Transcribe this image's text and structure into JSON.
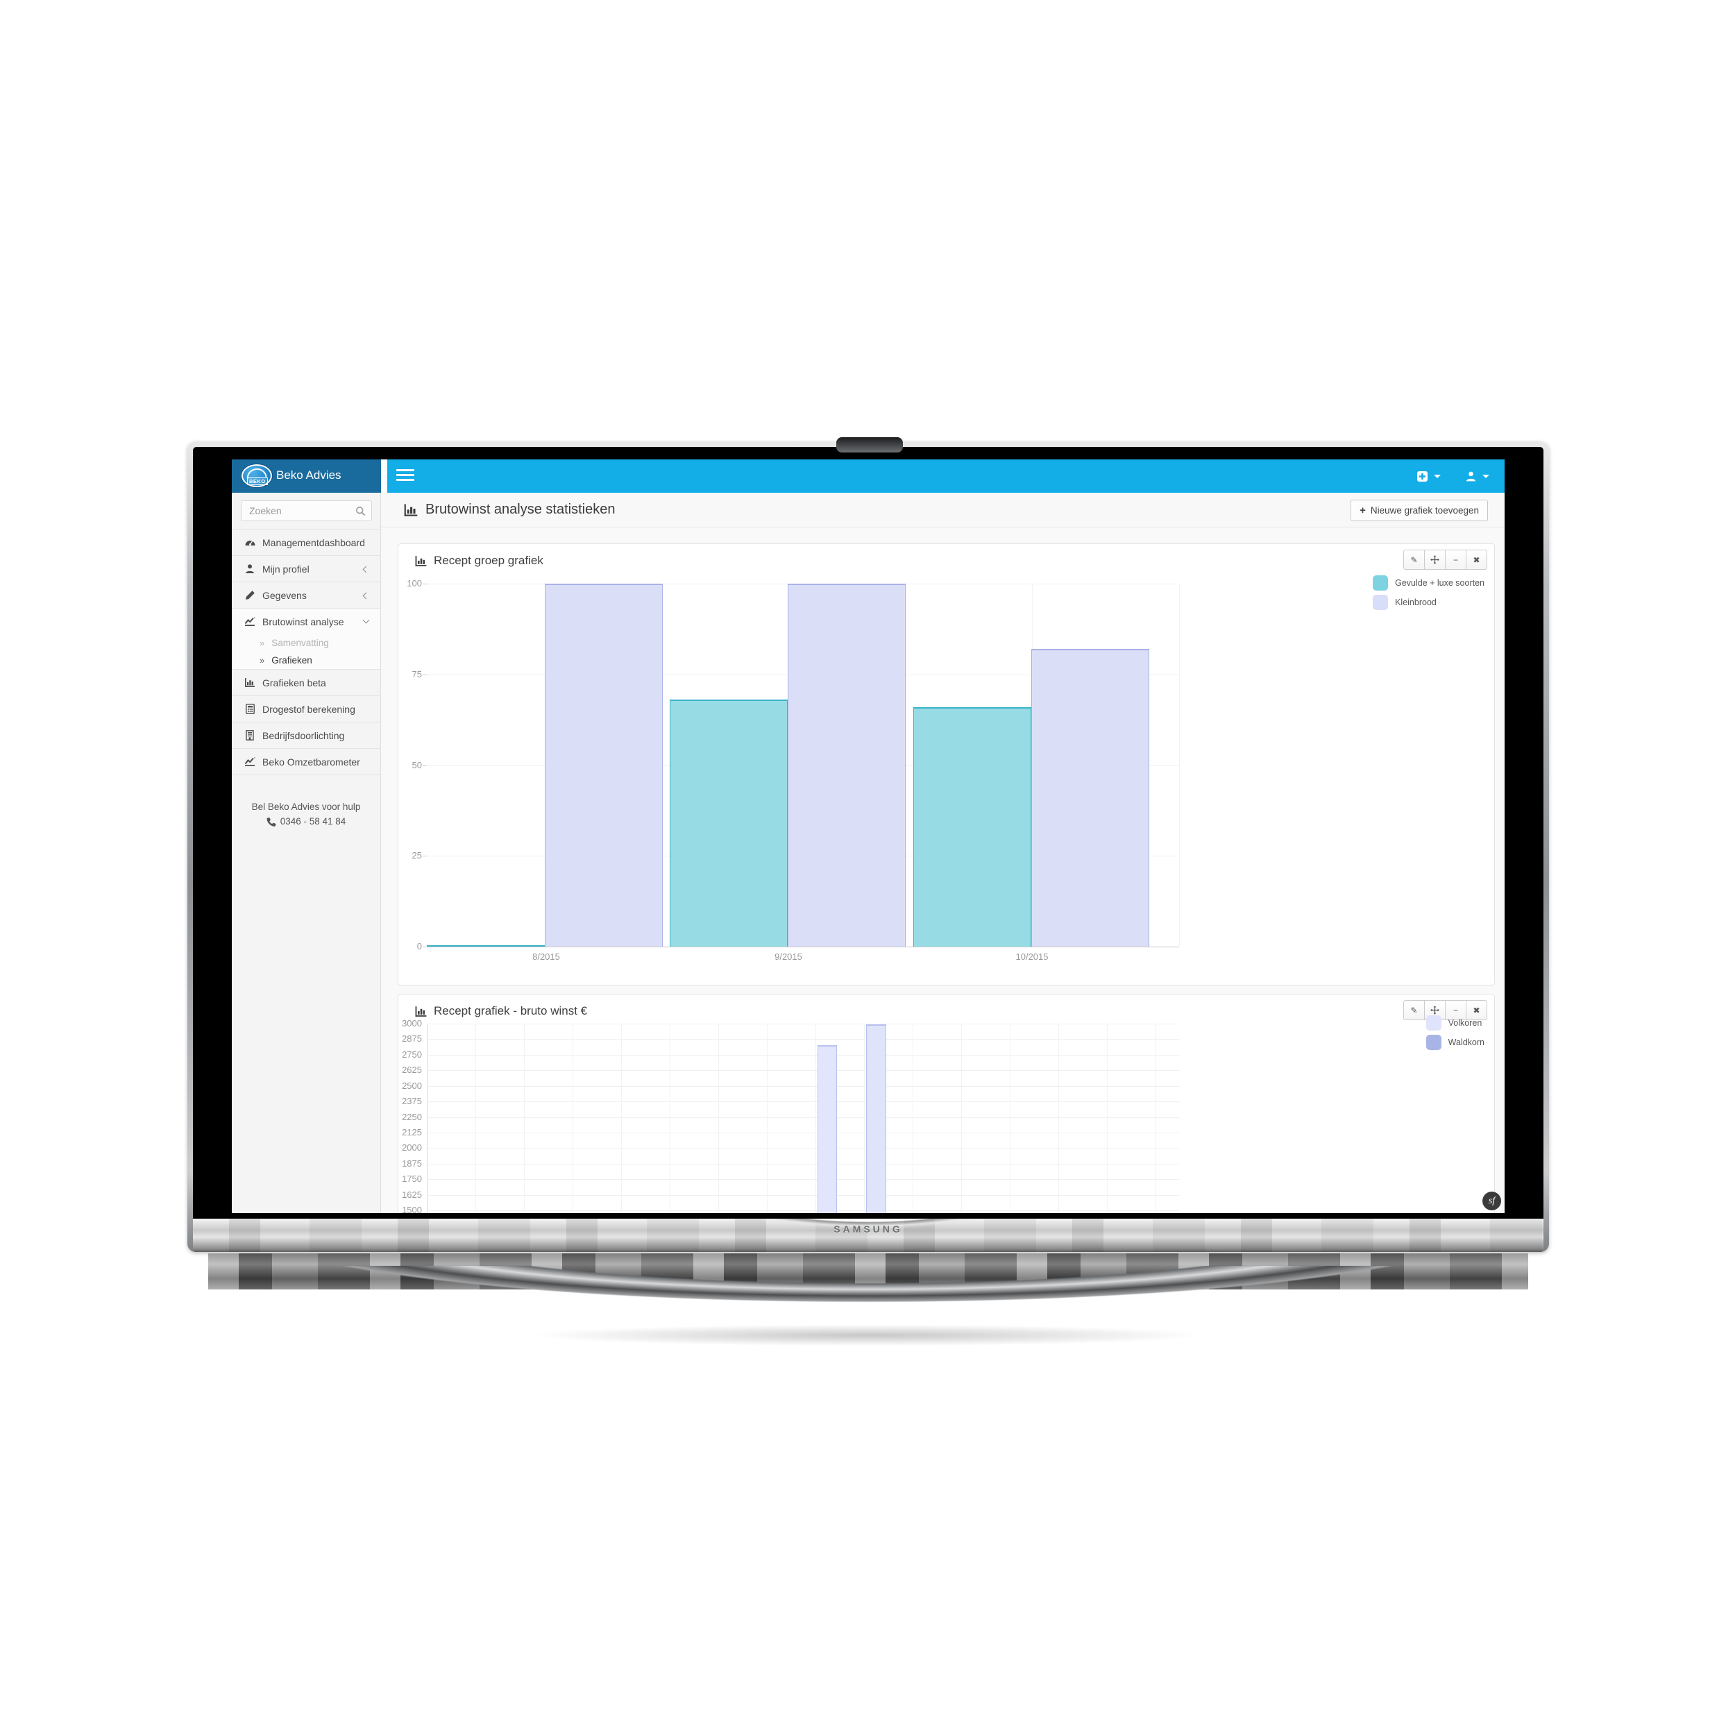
{
  "monitor": {
    "brand_label": "SAMSUNG"
  },
  "topbar": {
    "brand": "Beko Advies"
  },
  "sidebar": {
    "search_placeholder": "Zoeken",
    "items": [
      {
        "label": "Managementdashboard"
      },
      {
        "label": "Mijn profiel"
      },
      {
        "label": "Gegevens"
      },
      {
        "label": "Brutowinst analyse"
      },
      {
        "label": "Grafieken beta"
      },
      {
        "label": "Drogestof berekening"
      },
      {
        "label": "Bedrijfsdoorlichting"
      },
      {
        "label": "Beko Omzetbarometer"
      }
    ],
    "subitems": [
      {
        "label": "Samenvatting"
      },
      {
        "label": "Grafieken"
      }
    ],
    "help_text": "Bel Beko Advies voor hulp",
    "phone": "0346 - 58 41 84"
  },
  "page": {
    "title": "Brutowinst analyse statistieken",
    "add_chart_button": "Nieuwe grafiek toevoegen"
  },
  "footer_badge": "sf",
  "colors": {
    "topbar": "#13ade8",
    "brandbar": "#1a6b9d",
    "sidebar_bg": "#f4f4f4"
  },
  "chart_data": [
    {
      "type": "bar",
      "title": "Recept groep grafiek",
      "categories": [
        "8/2015",
        "9/2015",
        "10/2015"
      ],
      "series": [
        {
          "name": "Gevulde + luxe soorten",
          "values": [
            0,
            68,
            66
          ],
          "fill": "#97dbe4",
          "stroke": "#3ab4c8",
          "legend": "#7ed3e0"
        },
        {
          "name": "Kleinbrood",
          "values": [
            100,
            100,
            82
          ],
          "fill": "#dbdef7",
          "stroke": "#a9b1e8",
          "legend": "#d8ddf8"
        }
      ],
      "ylim": [
        0,
        100
      ],
      "yticks": [
        100,
        75,
        50,
        25,
        0
      ],
      "grid": true,
      "legend_position": "right"
    },
    {
      "type": "bar",
      "title": "Recept grafiek - bruto winst €",
      "categories": [
        ""
      ],
      "series": [
        {
          "name": "Volkoren",
          "values": [
            2825
          ],
          "fill": "#e2e5fb",
          "stroke": "#bac3f0",
          "legend": "#dfe4fc"
        },
        {
          "name": "Waldkorn",
          "values": [
            2995
          ],
          "fill": "#e0e4fa",
          "stroke": "#b6c0ee",
          "legend": "#a8b4e6"
        }
      ],
      "ylim": [
        1500,
        3000
      ],
      "yticks": [
        3000,
        2875,
        2750,
        2625,
        2500,
        2375,
        2250,
        2125,
        2000,
        1875,
        1750,
        1625,
        1500
      ],
      "grid": true,
      "legend_position": "right",
      "note": "bars continue below the visible screen edge"
    }
  ]
}
